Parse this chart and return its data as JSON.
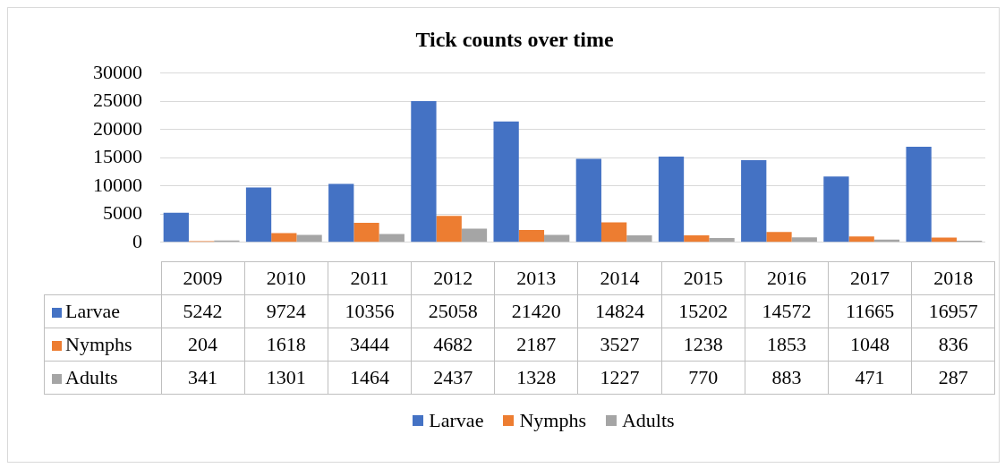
{
  "chart_data": {
    "type": "bar",
    "title": "Tick counts over time",
    "categories": [
      "2009",
      "2010",
      "2011",
      "2012",
      "2013",
      "2014",
      "2015",
      "2016",
      "2017",
      "2018"
    ],
    "series": [
      {
        "name": "Larvae",
        "color": "#4472c4",
        "values": [
          5242,
          9724,
          10356,
          25058,
          21420,
          14824,
          15202,
          14572,
          11665,
          16957
        ]
      },
      {
        "name": "Nymphs",
        "color": "#ed7d31",
        "values": [
          204,
          1618,
          3444,
          4682,
          2187,
          3527,
          1238,
          1853,
          1048,
          836
        ]
      },
      {
        "name": "Adults",
        "color": "#a5a5a5",
        "values": [
          341,
          1301,
          1464,
          2437,
          1328,
          1227,
          770,
          883,
          471,
          287
        ]
      }
    ],
    "ylim": [
      0,
      30000
    ],
    "yticks": [
      0,
      5000,
      10000,
      15000,
      20000,
      25000,
      30000
    ],
    "grid": "y",
    "legend": "bottom",
    "data_labels": true
  }
}
